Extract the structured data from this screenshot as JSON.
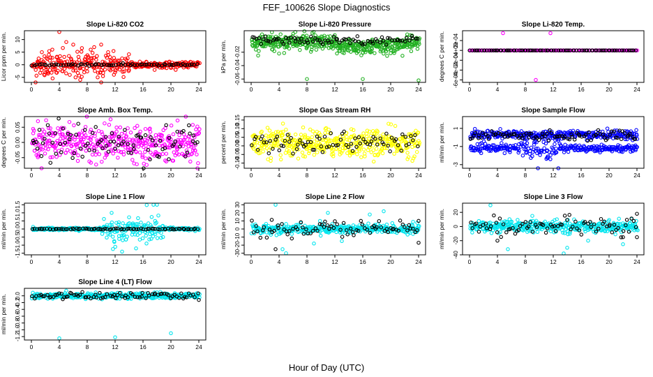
{
  "figure": {
    "title": "FEF_100626  Slope Diagnostics",
    "xlabel": "Hour of Day (UTC)"
  },
  "chart_data": [
    {
      "type": "scatter",
      "title": "Slope Li-820 CO2",
      "ylabel": "Licor ppm per min.",
      "xlim": [
        -1,
        25
      ],
      "ylim": [
        -7,
        13.5
      ],
      "xticks": [
        0,
        4,
        8,
        12,
        16,
        20,
        24
      ],
      "xtick_labels": [
        "0",
        "4",
        "8",
        "12",
        "16",
        "20",
        "24"
      ],
      "yticks": [
        -5,
        0,
        5,
        10
      ],
      "ytick_labels": [
        "-5",
        "0",
        "5",
        "10"
      ],
      "series": [
        {
          "color": "#ff0000",
          "gen": {
            "n": 380,
            "base": 0,
            "spread": 0.6,
            "burst": {
              "from": 0.5,
              "to": 14,
              "amp": 3.5
            },
            "outliers": [
              [
                4,
                13
              ],
              [
                1.5,
                5
              ],
              [
                2.5,
                4
              ],
              [
                3,
                6
              ],
              [
                5,
                9
              ],
              [
                6,
                8
              ],
              [
                7,
                -6
              ],
              [
                9,
                7
              ],
              [
                10,
                -7
              ],
              [
                10,
                8
              ],
              [
                11,
                5
              ],
              [
                12,
                -3
              ],
              [
                13,
                2.5
              ],
              [
                14,
                -2
              ],
              [
                9.5,
                -5
              ],
              [
                8.5,
                6
              ],
              [
                5.5,
                -4
              ],
              [
                2,
                -3
              ]
            ]
          }
        },
        {
          "color": "#000000",
          "gen": {
            "n": 70,
            "base": 0,
            "spread": 0.2
          }
        }
      ]
    },
    {
      "type": "scatter",
      "title": "Slope Li-820 Pressure",
      "ylabel": "kPa per min.",
      "xlim": [
        -1,
        25
      ],
      "ylim": [
        -0.065,
        0.012
      ],
      "xticks": [
        0,
        4,
        8,
        12,
        16,
        20,
        24
      ],
      "xtick_labels": [
        "0",
        "4",
        "8",
        "12",
        "16",
        "20",
        "24"
      ],
      "yticks": [
        -0.06,
        -0.04,
        -0.02
      ],
      "ytick_labels": [
        "-0.06",
        "-0.04",
        "-0.02"
      ],
      "series": [
        {
          "color": "#22b022",
          "gen": {
            "n": 520,
            "base": -0.008,
            "spread": 0.006,
            "wave": 0.004,
            "outliers": [
              [
                8,
                -0.06
              ],
              [
                16,
                -0.06
              ],
              [
                24,
                -0.062
              ],
              [
                1,
                -0.025
              ],
              [
                4,
                -0.022
              ]
            ]
          }
        },
        {
          "color": "#000000",
          "gen": {
            "n": 80,
            "base": -0.002,
            "spread": 0.003
          }
        }
      ]
    },
    {
      "type": "scatter",
      "title": "Slope Li-820 Temp.",
      "ylabel": "degrees C per min.",
      "xlim": [
        -1,
        25
      ],
      "ylim": [
        -0.00065,
        0.0004
      ],
      "xticks": [
        0,
        4,
        8,
        12,
        16,
        20,
        24
      ],
      "xtick_labels": [
        "0",
        "4",
        "8",
        "12",
        "16",
        "20",
        "24"
      ],
      "yticks": [
        -0.0006,
        -0.0004,
        -0.0002,
        0,
        0.0002
      ],
      "ytick_labels": [
        "-6e-04",
        "-4e-04",
        "-2e-04",
        "0e+00",
        "2e-04"
      ],
      "series": [
        {
          "color": "#ff00ff",
          "gen": {
            "n": 200,
            "base": 0,
            "spread": 0,
            "outliers": [
              [
                4.8,
                0.00035
              ],
              [
                11.6,
                0.00035
              ],
              [
                9.5,
                -0.0006
              ]
            ]
          }
        },
        {
          "color": "#000000",
          "gen": {
            "n": 90,
            "base": 0,
            "spread": 0
          }
        }
      ]
    },
    {
      "type": "scatter",
      "title": "Slope Amb. Box Temp.",
      "ylabel": "degrees C per min.",
      "xlim": [
        -1,
        25
      ],
      "ylim": [
        -0.085,
        0.085
      ],
      "xticks": [
        0,
        4,
        8,
        12,
        16,
        20,
        24
      ],
      "xtick_labels": [
        "0",
        "4",
        "8",
        "12",
        "16",
        "20",
        "24"
      ],
      "yticks": [
        -0.05,
        0,
        0.05
      ],
      "ytick_labels": [
        "-0.05",
        "0.00",
        "0.05"
      ],
      "series": [
        {
          "color": "#ff00ff",
          "gen": {
            "n": 420,
            "base": 0,
            "spread": 0.028
          }
        },
        {
          "color": "#000000",
          "gen": {
            "n": 90,
            "base": 0,
            "spread": 0.03
          }
        }
      ]
    },
    {
      "type": "scatter",
      "title": "Slope Gas Stream RH",
      "ylabel": "percent per min.",
      "xlim": [
        -1,
        25
      ],
      "ylim": [
        -0.13,
        0.17
      ],
      "xticks": [
        0,
        4,
        8,
        12,
        16,
        20,
        24
      ],
      "xtick_labels": [
        "0",
        "4",
        "8",
        "12",
        "16",
        "20",
        "24"
      ],
      "yticks": [
        -0.1,
        -0.05,
        0,
        0.05,
        0.1,
        0.15
      ],
      "ytick_labels": [
        "-0.10",
        "-0.05",
        "0.00",
        "0.05",
        "0.10",
        "0.15"
      ],
      "series": [
        {
          "color": "#ffff00",
          "gen": {
            "n": 440,
            "base": 0.015,
            "spread": 0.04
          }
        },
        {
          "color": "#000000",
          "gen": {
            "n": 80,
            "base": 0.02,
            "spread": 0.03
          }
        }
      ]
    },
    {
      "type": "scatter",
      "title": "Slope Sample Flow",
      "ylabel": "ml/min per min.",
      "xlim": [
        -1,
        25
      ],
      "ylim": [
        -3.4,
        2.3
      ],
      "xticks": [
        0,
        4,
        8,
        12,
        16,
        20,
        24
      ],
      "xtick_labels": [
        "0",
        "4",
        "8",
        "12",
        "16",
        "20",
        "24"
      ],
      "yticks": [
        -3,
        -1,
        1
      ],
      "ytick_labels": [
        "-3",
        "-1",
        "1"
      ],
      "series": [
        {
          "color": "#0000ff",
          "gen": {
            "n": 300,
            "base": 0.3,
            "spread": 0.25
          }
        },
        {
          "color": "#0000ff",
          "gen": {
            "n": 300,
            "base": -1.2,
            "spread": 0.2,
            "burst": {
              "from": 7,
              "to": 13,
              "amp": 1.0
            }
          }
        },
        {
          "color": "#000000",
          "gen": {
            "n": 90,
            "base": 0.2,
            "spread": 0.25
          }
        }
      ]
    },
    {
      "type": "scatter",
      "title": "Slope Line 1 Flow",
      "ylabel": "ml/min per min.",
      "xlim": [
        -1,
        25
      ],
      "ylim": [
        -1.6,
        1.6
      ],
      "xticks": [
        0,
        4,
        8,
        12,
        16,
        20,
        24
      ],
      "xtick_labels": [
        "0",
        "4",
        "8",
        "12",
        "16",
        "20",
        "24"
      ],
      "yticks": [
        -1.5,
        -1,
        -0.5,
        0,
        0.5,
        1,
        1.5
      ],
      "ytick_labels": [
        "-1.5",
        "-1.0",
        "-0.5",
        "0.0",
        "0.5",
        "1.0",
        "1.5"
      ],
      "series": [
        {
          "color": "#00e5ee",
          "gen": {
            "n": 380,
            "base": 0,
            "spread": 0.04,
            "burst": {
              "from": 10,
              "to": 19,
              "amp": 0.55
            },
            "outliers": [
              [
                11.5,
                1.0
              ],
              [
                13,
                -1.4
              ],
              [
                17.5,
                1.5
              ],
              [
                18,
                1.5
              ],
              [
                15,
                -1.2
              ],
              [
                16.5,
                -0.9
              ]
            ]
          }
        },
        {
          "color": "#000000",
          "gen": {
            "n": 80,
            "base": 0,
            "spread": 0.02
          }
        }
      ]
    },
    {
      "type": "scatter",
      "title": "Slope Line 2 Flow",
      "ylabel": "ml/min per min.",
      "xlim": [
        -1,
        25
      ],
      "ylim": [
        -32,
        32
      ],
      "xticks": [
        0,
        4,
        8,
        12,
        16,
        20,
        24
      ],
      "xtick_labels": [
        "0",
        "4",
        "8",
        "12",
        "16",
        "20",
        "24"
      ],
      "yticks": [
        -30,
        -20,
        -10,
        0,
        10,
        20,
        30
      ],
      "ytick_labels": [
        "-30",
        "-20",
        "-10",
        "0",
        "10",
        "20",
        "30"
      ],
      "series": [
        {
          "color": "#00e5ee",
          "gen": {
            "n": 380,
            "base": 0,
            "spread": 3,
            "outliers": [
              [
                3.5,
                30
              ],
              [
                5,
                -30
              ],
              [
                11,
                20
              ],
              [
                19,
                22
              ],
              [
                9,
                -18
              ],
              [
                13,
                -15
              ],
              [
                17,
                18
              ],
              [
                4.5,
                -25
              ]
            ]
          }
        },
        {
          "color": "#000000",
          "gen": {
            "n": 80,
            "base": 0,
            "spread": 5,
            "outliers": [
              [
                3.5,
                -25
              ],
              [
                24,
                -17
              ],
              [
                24,
                10
              ]
            ]
          }
        }
      ]
    },
    {
      "type": "scatter",
      "title": "Slope Line 3 Flow",
      "ylabel": "ml/min per min.",
      "xlim": [
        -1,
        25
      ],
      "ylim": [
        -40,
        33
      ],
      "xticks": [
        0,
        4,
        8,
        12,
        16,
        20,
        24
      ],
      "xtick_labels": [
        "0",
        "4",
        "8",
        "12",
        "16",
        "20",
        "24"
      ],
      "yticks": [
        -40,
        -20,
        0,
        20
      ],
      "ytick_labels": [
        "-40",
        "-20",
        "0",
        "20"
      ],
      "series": [
        {
          "color": "#00e5ee",
          "gen": {
            "n": 380,
            "base": 0,
            "spread": 4,
            "outliers": [
              [
                3,
                30
              ],
              [
                5.5,
                -32
              ],
              [
                13.5,
                -38
              ],
              [
                14,
                -30
              ],
              [
                22,
                -25
              ],
              [
                9,
                15
              ],
              [
                17,
                -20
              ]
            ]
          }
        },
        {
          "color": "#000000",
          "gen": {
            "n": 80,
            "base": 0,
            "spread": 6,
            "outliers": [
              [
                4,
                -20
              ],
              [
                24,
                -15
              ],
              [
                24,
                18
              ],
              [
                22,
                -15
              ]
            ]
          }
        }
      ]
    },
    {
      "type": "scatter",
      "title": "Slope Line 4 (LT) Flow",
      "ylabel": "ml/min per min.",
      "xlim": [
        -1,
        25
      ],
      "ylim": [
        -1.3,
        0.22
      ],
      "xticks": [
        0,
        4,
        8,
        12,
        16,
        20,
        24
      ],
      "xtick_labels": [
        "0",
        "4",
        "8",
        "12",
        "16",
        "20",
        "24"
      ],
      "yticks": [
        -1.2,
        -1,
        -0.8,
        -0.6,
        -0.4,
        -0.2,
        0
      ],
      "ytick_labels": [
        "-1.2",
        "-1.0",
        "-0.8",
        "-0.6",
        "-0.4",
        "-0.2",
        "0.0"
      ],
      "series": [
        {
          "color": "#00e5ee",
          "gen": {
            "n": 380,
            "base": 0,
            "spread": 0.04,
            "outliers": [
              [
                4,
                -1.25
              ],
              [
                12,
                -1.22
              ],
              [
                20,
                -1.1
              ],
              [
                18,
                0.1
              ],
              [
                5,
                0.15
              ]
            ]
          }
        },
        {
          "color": "#000000",
          "gen": {
            "n": 80,
            "base": 0,
            "spread": 0.05,
            "outliers": [
              [
                24,
                -0.12
              ],
              [
                4.5,
                -0.1
              ]
            ]
          }
        }
      ]
    }
  ]
}
